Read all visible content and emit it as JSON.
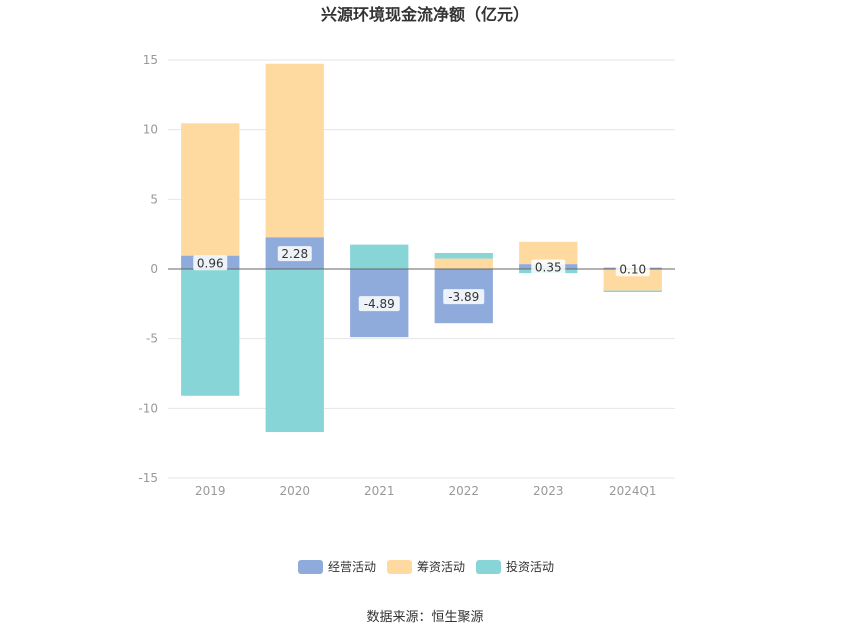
{
  "chart_data": {
    "type": "bar",
    "stacked": true,
    "title": "兴源环境现金流净额（亿元）",
    "categories": [
      "2019",
      "2020",
      "2021",
      "2022",
      "2023",
      "2024Q1"
    ],
    "ylim": [
      -15,
      15
    ],
    "yticks": [
      15,
      10,
      5,
      0,
      -5,
      -10,
      -15
    ],
    "grid": true,
    "legend_position": "bottom",
    "series": [
      {
        "name": "经营活动",
        "color": "#8fabdb",
        "values": [
          0.96,
          2.28,
          -4.89,
          -3.89,
          0.35,
          0.1
        ]
      },
      {
        "name": "筹资活动",
        "color": "#fedaa0",
        "values": [
          9.5,
          12.45,
          0.0,
          0.75,
          1.6,
          -1.55
        ]
      },
      {
        "name": "投资活动",
        "color": "#88d5d8",
        "values": [
          -9.1,
          -11.7,
          1.75,
          0.4,
          -0.3,
          -0.1
        ]
      }
    ],
    "data_labels": [
      "0.96",
      "2.28",
      "-4.89",
      "-3.89",
      "0.35",
      "0.10"
    ],
    "source": "数据来源：恒生聚源"
  }
}
